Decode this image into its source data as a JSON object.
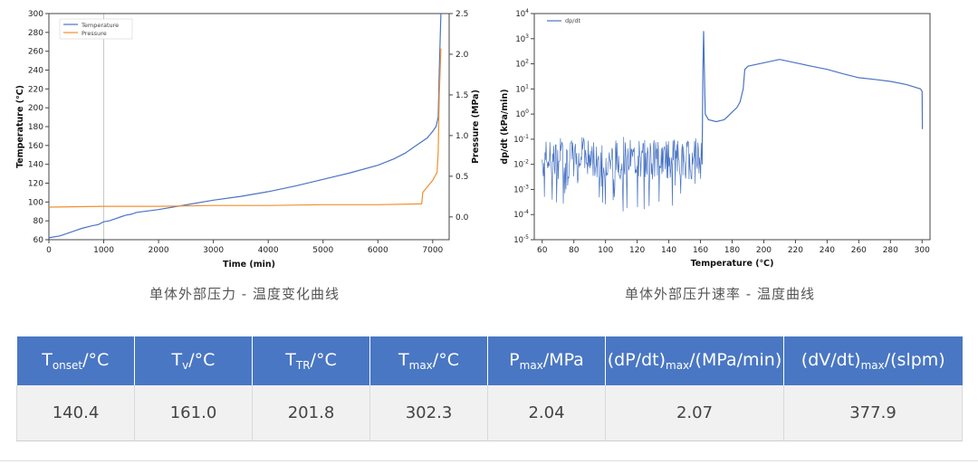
{
  "chart_data": [
    {
      "type": "line",
      "xlabel": "Time (min)",
      "ylabel": "Temperature (℃)",
      "y2label": "Pressure (MPa)",
      "xlim": [
        0,
        7300
      ],
      "ylim": [
        60,
        300
      ],
      "y2lim": [
        -0.28,
        2.5
      ],
      "xticks": [
        0,
        1000,
        2000,
        3000,
        4000,
        5000,
        6000,
        7000
      ],
      "yticks": [
        60,
        80,
        100,
        120,
        140,
        160,
        180,
        200,
        220,
        240,
        260,
        280,
        300
      ],
      "y2ticks": [
        0.0,
        0.5,
        1.0,
        1.5,
        2.0,
        2.5
      ],
      "legend_position": "top-left",
      "grid": "vertical line at x=1000",
      "series": [
        {
          "name": "Temperature",
          "axis": "left",
          "color": "#4a74c4",
          "x": [
            0,
            200,
            400,
            600,
            800,
            900,
            1000,
            1100,
            1200,
            1300,
            1400,
            1500,
            1600,
            2000,
            2500,
            3000,
            3500,
            4000,
            4500,
            5000,
            5500,
            6000,
            6300,
            6500,
            6700,
            6900,
            7000,
            7060,
            7100,
            7120,
            7150
          ],
          "y": [
            62,
            64,
            68,
            72,
            75,
            76,
            79,
            80,
            82,
            84,
            86,
            87,
            89,
            92,
            97,
            102,
            106,
            111,
            117,
            124,
            131,
            139,
            146,
            152,
            160,
            168,
            175,
            180,
            190,
            240,
            300
          ]
        },
        {
          "name": "Pressure",
          "axis": "right",
          "color": "#f0902e",
          "x": [
            0,
            1000,
            2000,
            3000,
            4000,
            5000,
            6000,
            6800,
            6820,
            7000,
            7080,
            7100,
            7120,
            7150
          ],
          "y": [
            0.12,
            0.13,
            0.13,
            0.14,
            0.14,
            0.15,
            0.15,
            0.16,
            0.3,
            0.45,
            0.55,
            0.8,
            1.5,
            2.07
          ]
        }
      ]
    },
    {
      "type": "line",
      "xlabel": "Temperature (℃)",
      "ylabel": "dp/dt (kPa/min)",
      "yscale": "log",
      "xlim": [
        55,
        305
      ],
      "ylim_exp": [
        -5,
        4
      ],
      "xticks": [
        60,
        80,
        100,
        120,
        140,
        160,
        180,
        200,
        220,
        240,
        260,
        280,
        300
      ],
      "legend_position": "top-left",
      "series": [
        {
          "name": "dp/dt",
          "color": "#4a74c4",
          "noise_region": {
            "x_range": [
              60,
              161
            ],
            "log_min": -3.9,
            "log_max": -0.9,
            "median_log": -1.8
          },
          "x": [
            161,
            161.5,
            162,
            163,
            165,
            170,
            175,
            178,
            180,
            183,
            185,
            187,
            188,
            190,
            200,
            210,
            220,
            230,
            240,
            250,
            260,
            270,
            280,
            290,
            299,
            300,
            300.2
          ],
          "y": [
            0.01,
            50,
            2000,
            1,
            0.6,
            0.5,
            0.6,
            0.9,
            1.2,
            1.8,
            3,
            10,
            60,
            80,
            110,
            150,
            110,
            80,
            60,
            40,
            28,
            24,
            20,
            15,
            10,
            8,
            0.25
          ]
        }
      ]
    }
  ],
  "captions": {
    "left": "单体外部压力 - 温度变化曲线",
    "right": "单体外部压升速率 - 温度曲线"
  },
  "table": {
    "headers": [
      {
        "main": "T",
        "sub": "onset",
        "rest": "/°C"
      },
      {
        "main": "T",
        "sub": "v",
        "rest": "/°C"
      },
      {
        "main": "T",
        "sub": "TR",
        "rest": "/°C"
      },
      {
        "main": "T",
        "sub": "max",
        "rest": "/°C"
      },
      {
        "main": "P",
        "sub": "max",
        "rest": "/MPa"
      },
      {
        "main": "(dP/dt)",
        "sub": "max",
        "rest": "/(MPa/min)"
      },
      {
        "main": "(dV/dt)",
        "sub": "max",
        "rest": "/(slpm)"
      }
    ],
    "values": [
      "140.4",
      "161.0",
      "201.8",
      "302.3",
      "2.04",
      "2.07",
      "377.9"
    ]
  },
  "colors": {
    "header_bg": "#4a77c3",
    "cell_bg": "#f1f1f1",
    "temperature_line": "#4a74c4",
    "pressure_line": "#f0902e"
  }
}
